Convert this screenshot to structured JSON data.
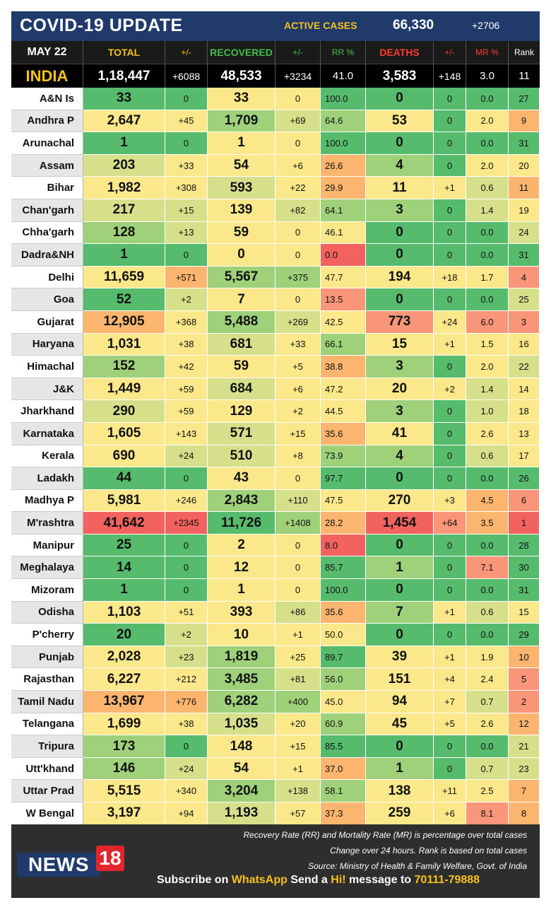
{
  "header": {
    "title": "COVID-19 UPDATE",
    "active_cases_label": "ACTIVE CASES",
    "active_cases_value": "66,330",
    "active_cases_change": "+2706"
  },
  "columns": {
    "date": "MAY 22",
    "total": "TOTAL",
    "total_change": "+/-",
    "recovered": "RECOVERED",
    "recovered_change": "+/-",
    "rr": "RR %",
    "deaths": "DEATHS",
    "deaths_change": "+/-",
    "mr": "MR %",
    "rank": "Rank"
  },
  "india": {
    "name": "INDIA",
    "total": "1,18,447",
    "total_change": "+6088",
    "recovered": "48,533",
    "recovered_change": "+3234",
    "rr": "41.0",
    "deaths": "3,583",
    "deaths_change": "+148",
    "mr": "3.0",
    "rank": "11"
  },
  "rows": [
    [
      "A&N Is",
      "33",
      "0",
      "33",
      "0",
      "100.0",
      "0",
      "0",
      "0.0",
      "27"
    ],
    [
      "Andhra P",
      "2,647",
      "+45",
      "1,709",
      "+69",
      "64.6",
      "53",
      "0",
      "2.0",
      "9"
    ],
    [
      "Arunachal",
      "1",
      "0",
      "1",
      "0",
      "100.0",
      "0",
      "0",
      "0.0",
      "31"
    ],
    [
      "Assam",
      "203",
      "+33",
      "54",
      "+6",
      "26.6",
      "4",
      "0",
      "2.0",
      "20"
    ],
    [
      "Bihar",
      "1,982",
      "+308",
      "593",
      "+22",
      "29.9",
      "11",
      "+1",
      "0.6",
      "11"
    ],
    [
      "Chan'garh",
      "217",
      "+15",
      "139",
      "+82",
      "64.1",
      "3",
      "0",
      "1.4",
      "19"
    ],
    [
      "Chha'garh",
      "128",
      "+13",
      "59",
      "0",
      "46.1",
      "0",
      "0",
      "0.0",
      "24"
    ],
    [
      "Dadra&NH",
      "1",
      "0",
      "0",
      "0",
      "0.0",
      "0",
      "0",
      "0.0",
      "31"
    ],
    [
      "Delhi",
      "11,659",
      "+571",
      "5,567",
      "+375",
      "47.7",
      "194",
      "+18",
      "1.7",
      "4"
    ],
    [
      "Goa",
      "52",
      "+2",
      "7",
      "0",
      "13.5",
      "0",
      "0",
      "0.0",
      "25"
    ],
    [
      "Gujarat",
      "12,905",
      "+368",
      "5,488",
      "+269",
      "42.5",
      "773",
      "+24",
      "6.0",
      "3"
    ],
    [
      "Haryana",
      "1,031",
      "+38",
      "681",
      "+33",
      "66.1",
      "15",
      "+1",
      "1.5",
      "16"
    ],
    [
      "Himachal",
      "152",
      "+42",
      "59",
      "+5",
      "38.8",
      "3",
      "0",
      "2.0",
      "22"
    ],
    [
      "J&K",
      "1,449",
      "+59",
      "684",
      "+6",
      "47.2",
      "20",
      "+2",
      "1.4",
      "14"
    ],
    [
      "Jharkhand",
      "290",
      "+59",
      "129",
      "+2",
      "44.5",
      "3",
      "0",
      "1.0",
      "18"
    ],
    [
      "Karnataka",
      "1,605",
      "+143",
      "571",
      "+15",
      "35.6",
      "41",
      "0",
      "2.6",
      "13"
    ],
    [
      "Kerala",
      "690",
      "+24",
      "510",
      "+8",
      "73.9",
      "4",
      "0",
      "0.6",
      "17"
    ],
    [
      "Ladakh",
      "44",
      "0",
      "43",
      "0",
      "97.7",
      "0",
      "0",
      "0.0",
      "26"
    ],
    [
      "Madhya P",
      "5,981",
      "+246",
      "2,843",
      "+110",
      "47.5",
      "270",
      "+3",
      "4.5",
      "6"
    ],
    [
      "M'rashtra",
      "41,642",
      "+2345",
      "11,726",
      "+1408",
      "28.2",
      "1,454",
      "+64",
      "3.5",
      "1"
    ],
    [
      "Manipur",
      "25",
      "0",
      "2",
      "0",
      "8.0",
      "0",
      "0",
      "0.0",
      "28"
    ],
    [
      "Meghalaya",
      "14",
      "0",
      "12",
      "0",
      "85.7",
      "1",
      "0",
      "7.1",
      "30"
    ],
    [
      "Mizoram",
      "1",
      "0",
      "1",
      "0",
      "100.0",
      "0",
      "0",
      "0.0",
      "31"
    ],
    [
      "Odisha",
      "1,103",
      "+51",
      "393",
      "+86",
      "35.6",
      "7",
      "+1",
      "0.6",
      "15"
    ],
    [
      "P'cherry",
      "20",
      "+2",
      "10",
      "+1",
      "50.0",
      "0",
      "0",
      "0.0",
      "29"
    ],
    [
      "Punjab",
      "2,028",
      "+23",
      "1,819",
      "+25",
      "89.7",
      "39",
      "+1",
      "1.9",
      "10"
    ],
    [
      "Rajasthan",
      "6,227",
      "+212",
      "3,485",
      "+81",
      "56.0",
      "151",
      "+4",
      "2.4",
      "5"
    ],
    [
      "Tamil Nadu",
      "13,967",
      "+776",
      "6,282",
      "+400",
      "45.0",
      "94",
      "+7",
      "0.7",
      "2"
    ],
    [
      "Telangana",
      "1,699",
      "+38",
      "1,035",
      "+20",
      "60.9",
      "45",
      "+5",
      "2.6",
      "12"
    ],
    [
      "Tripura",
      "173",
      "0",
      "148",
      "+15",
      "85.5",
      "0",
      "0",
      "0.0",
      "21"
    ],
    [
      "Utt'khand",
      "146",
      "+24",
      "54",
      "+1",
      "37.0",
      "1",
      "0",
      "0.7",
      "23"
    ],
    [
      "Uttar Prad",
      "5,515",
      "+340",
      "3,204",
      "+138",
      "58.1",
      "138",
      "+11",
      "2.5",
      "7"
    ],
    [
      "W Bengal",
      "3,197",
      "+94",
      "1,193",
      "+57",
      "37.3",
      "259",
      "+6",
      "8.1",
      "8"
    ]
  ],
  "palette": {
    "green": "#57bb6e",
    "light_green": "#9fd17a",
    "yellow_green": "#d6e08a",
    "yellow": "#fbe88a",
    "orange": "#fbb56e",
    "salmon": "#f9967a",
    "red": "#f2625e"
  },
  "footer": {
    "note1": "Recovery Rate (RR) and Mortality Rate (MR) is percentage over total cases",
    "note2": "Change over 24 hours. Rank is based on total cases",
    "note3": "Source: Ministry of Health & Family Welfare, Govt. of India",
    "logo_news": "NEWS",
    "logo_18": "18",
    "subscribe_pre": "Subscribe on ",
    "subscribe_whatsapp": "WhatsApp",
    "subscribe_mid": " Send a ",
    "subscribe_hi": "Hi!",
    "subscribe_msg": " message to ",
    "subscribe_number": "70111-79888"
  }
}
